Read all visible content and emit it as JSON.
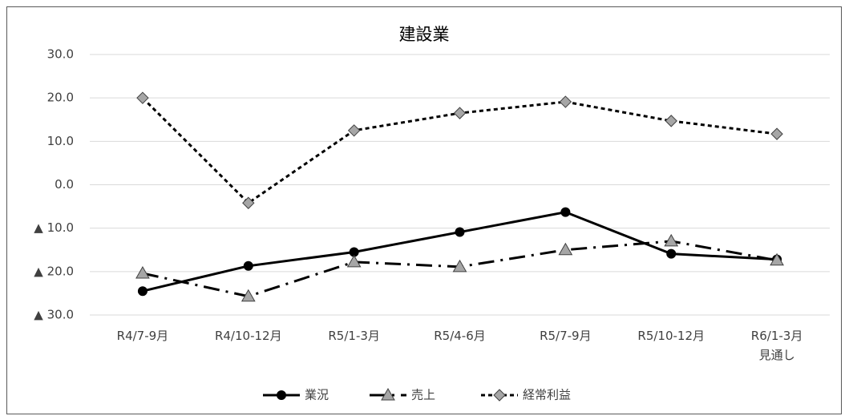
{
  "chart_data": {
    "type": "line",
    "title": "建設業",
    "categories": [
      "R4/7-9月",
      "R4/10-12月",
      "R5/1-3月",
      "R5/4-6月",
      "R5/7-9月",
      "R5/10-12月",
      "R6/1-3月\n見通し"
    ],
    "series": [
      {
        "name": "業況",
        "color": "#000000",
        "marker": "circle",
        "dash": "solid",
        "values": [
          -24.5,
          -18.7,
          -15.5,
          -10.9,
          -6.3,
          -15.9,
          -17.2
        ]
      },
      {
        "name": "売上",
        "color": "#000000",
        "marker": "triangle",
        "dash": "dash-dot",
        "values": [
          -20.4,
          -25.7,
          -17.8,
          -18.9,
          -15.0,
          -13.0,
          -17.4
        ]
      },
      {
        "name": "経常利益",
        "color": "#000000",
        "marker": "diamond",
        "dash": "dotted",
        "values": [
          20.0,
          -4.2,
          12.5,
          16.5,
          19.1,
          14.7,
          11.7
        ]
      }
    ],
    "ylim": [
      -30,
      30
    ],
    "yticks": [
      {
        "value": 30,
        "label": "30.0"
      },
      {
        "value": 20,
        "label": "20.0"
      },
      {
        "value": 10,
        "label": "10.0"
      },
      {
        "value": 0,
        "label": "0.0"
      },
      {
        "value": -10,
        "label": "▲ 10.0"
      },
      {
        "value": -20,
        "label": "▲ 20.0"
      },
      {
        "value": -30,
        "label": "▲ 30.0"
      }
    ],
    "grid": true,
    "legend": "bottom"
  }
}
